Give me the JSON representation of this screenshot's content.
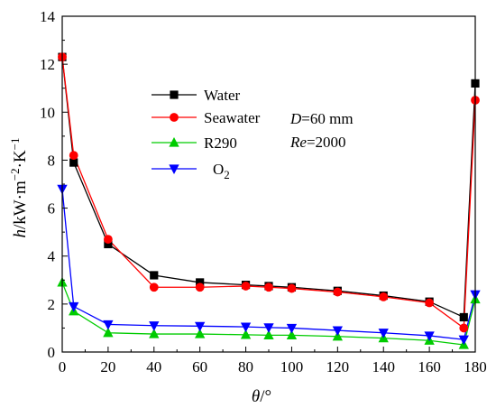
{
  "chart_data": {
    "type": "line",
    "xlabel": "θ/°",
    "ylabel": "h/kW·m⁻²·K⁻¹",
    "xlim": [
      0,
      180
    ],
    "ylim": [
      0,
      14
    ],
    "xticks": [
      0,
      20,
      40,
      60,
      80,
      100,
      120,
      140,
      160,
      180
    ],
    "yticks": [
      0,
      2,
      4,
      6,
      8,
      10,
      12,
      14
    ],
    "grid": false,
    "legend_position": "upper-left-center",
    "annotations": [
      "D=60 mm",
      "Re=2000"
    ],
    "series": [
      {
        "name": "Water",
        "color": "#000000",
        "marker": "square",
        "x": [
          0,
          5,
          20,
          40,
          60,
          80,
          90,
          100,
          120,
          140,
          160,
          175,
          180
        ],
        "y": [
          12.3,
          7.9,
          4.5,
          3.2,
          2.9,
          2.8,
          2.75,
          2.7,
          2.55,
          2.35,
          2.1,
          1.45,
          11.2
        ]
      },
      {
        "name": "Seawater",
        "color": "#ff0000",
        "marker": "circle",
        "x": [
          0,
          5,
          20,
          40,
          60,
          80,
          90,
          100,
          120,
          140,
          160,
          175,
          180
        ],
        "y": [
          12.3,
          8.2,
          4.7,
          2.7,
          2.7,
          2.75,
          2.7,
          2.65,
          2.5,
          2.3,
          2.05,
          1.0,
          10.5
        ]
      },
      {
        "name": "R290",
        "color": "#00cc00",
        "marker": "triangle-up",
        "x": [
          0,
          5,
          20,
          40,
          60,
          80,
          90,
          100,
          120,
          140,
          160,
          175,
          180
        ],
        "y": [
          2.9,
          1.7,
          0.8,
          0.75,
          0.75,
          0.72,
          0.7,
          0.7,
          0.65,
          0.58,
          0.48,
          0.3,
          2.2
        ]
      },
      {
        "name": "O₂",
        "color": "#0000ff",
        "marker": "triangle-down",
        "x": [
          0,
          5,
          20,
          40,
          60,
          80,
          90,
          100,
          120,
          140,
          160,
          175,
          180
        ],
        "y": [
          6.8,
          1.9,
          1.15,
          1.1,
          1.08,
          1.05,
          1.02,
          1.0,
          0.9,
          0.8,
          0.68,
          0.52,
          2.4
        ]
      }
    ]
  }
}
